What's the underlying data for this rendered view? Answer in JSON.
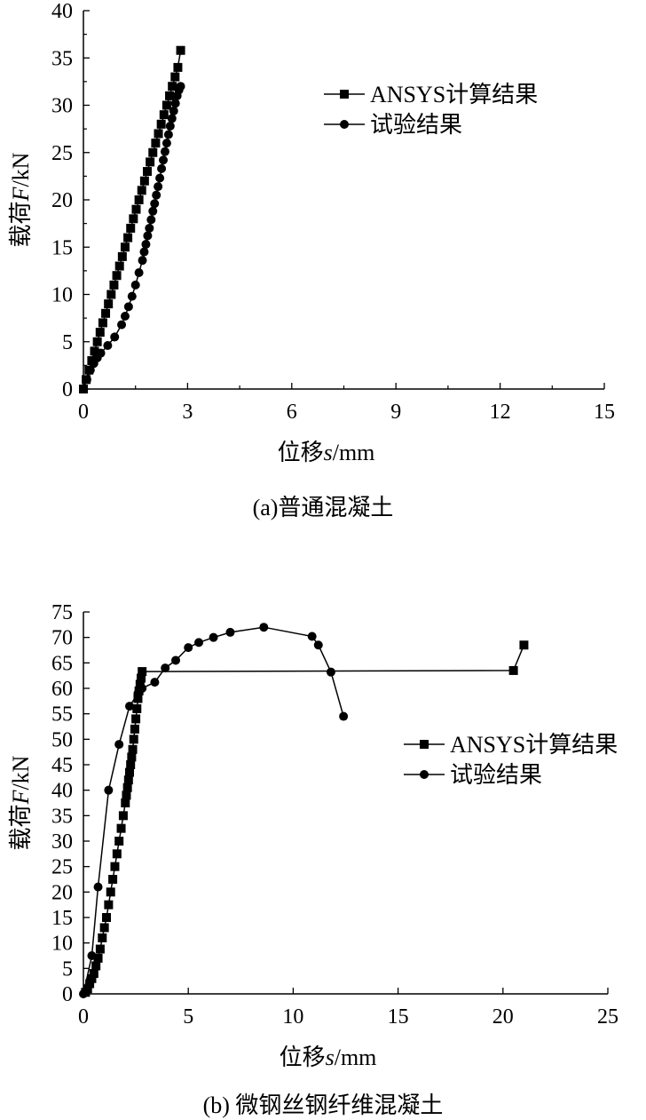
{
  "figure": {
    "panels": [
      {
        "caption": "(a)普通混凝土",
        "legend": [
          "ANSYS计算结果",
          "试验结果"
        ],
        "xlabel": {
          "pre": "位移",
          "var": "s",
          "post": "/mm"
        },
        "ylabel": {
          "pre": "载荷",
          "var": "F",
          "post": "/kN"
        }
      },
      {
        "caption": "(b) 微钢丝钢纤维混凝土",
        "legend": [
          "ANSYS计算结果",
          "试验结果"
        ],
        "xlabel": {
          "pre": "位移",
          "var": "s",
          "post": "/mm"
        },
        "ylabel": {
          "pre": "载荷",
          "var": "F",
          "post": "/kN"
        }
      }
    ]
  },
  "chart_data": [
    {
      "type": "line",
      "title": "(a)普通混凝土",
      "xlabel": "位移s/mm",
      "ylabel": "载荷F/kN",
      "xlim": [
        0,
        15
      ],
      "ylim": [
        0,
        40
      ],
      "xticks": [
        0,
        3,
        6,
        9,
        12,
        15
      ],
      "yticks": [
        0,
        5,
        10,
        15,
        20,
        25,
        30,
        35,
        40
      ],
      "legend_position": "top-right",
      "grid": false,
      "series": [
        {
          "name": "ANSYS计算结果",
          "marker": "square",
          "x": [
            0.0,
            0.08,
            0.16,
            0.24,
            0.32,
            0.4,
            0.48,
            0.56,
            0.64,
            0.72,
            0.8,
            0.88,
            0.96,
            1.04,
            1.12,
            1.2,
            1.28,
            1.36,
            1.44,
            1.52,
            1.6,
            1.68,
            1.76,
            1.84,
            1.92,
            2.0,
            2.08,
            2.16,
            2.24,
            2.32,
            2.4,
            2.48,
            2.56,
            2.64,
            2.72,
            2.8
          ],
          "y": [
            0.0,
            1.0,
            2.0,
            3.0,
            4.0,
            5.0,
            6.0,
            7.0,
            8.0,
            9.0,
            10.0,
            11.0,
            12.0,
            13.0,
            14.0,
            15.0,
            16.0,
            17.0,
            18.0,
            19.0,
            20.0,
            21.0,
            22.0,
            23.0,
            24.0,
            25.0,
            26.0,
            27.0,
            28.0,
            29.0,
            30.0,
            31.0,
            32.0,
            33.0,
            34.0,
            35.8
          ]
        },
        {
          "name": "试验结果",
          "marker": "circle",
          "x": [
            0.0,
            0.1,
            0.2,
            0.3,
            0.4,
            0.5,
            0.7,
            0.9,
            1.1,
            1.2,
            1.3,
            1.4,
            1.5,
            1.6,
            1.7,
            1.75,
            1.8,
            1.85,
            1.9,
            1.95,
            2.0,
            2.05,
            2.1,
            2.15,
            2.2,
            2.25,
            2.3,
            2.35,
            2.4,
            2.45,
            2.5,
            2.55,
            2.6,
            2.65,
            2.7,
            2.75,
            2.8
          ],
          "y": [
            0.0,
            1.0,
            2.0,
            2.7,
            3.3,
            3.8,
            4.6,
            5.5,
            6.8,
            7.7,
            8.7,
            9.8,
            11.0,
            12.3,
            13.6,
            14.5,
            15.3,
            16.2,
            17.0,
            17.9,
            18.8,
            19.6,
            20.5,
            21.4,
            22.3,
            23.3,
            24.2,
            25.1,
            26.0,
            26.9,
            27.8,
            28.6,
            29.4,
            30.2,
            31.0,
            31.6,
            32.0
          ]
        }
      ]
    },
    {
      "type": "line",
      "title": "(b) 微钢丝钢纤维混凝土",
      "xlabel": "位移s/mm",
      "ylabel": "载荷F/kN",
      "xlim": [
        0,
        25
      ],
      "ylim": [
        0,
        75
      ],
      "xticks": [
        0,
        5,
        10,
        15,
        20,
        25
      ],
      "yticks": [
        0,
        5,
        10,
        15,
        20,
        25,
        30,
        35,
        40,
        45,
        50,
        55,
        60,
        65,
        70,
        75
      ],
      "legend_position": "right",
      "grid": false,
      "series": [
        {
          "name": "ANSYS计算结果",
          "marker": "square",
          "x": [
            0.1,
            0.2,
            0.3,
            0.4,
            0.5,
            0.6,
            0.7,
            0.8,
            0.9,
            1.0,
            1.1,
            1.2,
            1.3,
            1.4,
            1.5,
            1.6,
            1.7,
            1.8,
            1.9,
            2.0,
            2.05,
            2.1,
            2.15,
            2.2,
            2.25,
            2.3,
            2.35,
            2.4,
            2.45,
            2.5,
            2.55,
            2.6,
            2.65,
            2.7,
            2.75,
            2.8,
            20.5,
            21.0
          ],
          "y": [
            0.3,
            1.0,
            2.0,
            3.0,
            4.0,
            5.5,
            7.0,
            8.8,
            11.0,
            13.0,
            15.0,
            17.5,
            20.0,
            22.5,
            25.0,
            27.5,
            30.0,
            32.5,
            35.0,
            37.5,
            39.0,
            40.5,
            42.0,
            43.5,
            45.0,
            46.5,
            48.0,
            50.0,
            52.0,
            54.0,
            56.0,
            58.0,
            59.5,
            60.8,
            62.0,
            63.3,
            63.5,
            68.5
          ]
        },
        {
          "name": "试验结果",
          "marker": "circle",
          "x": [
            0.0,
            0.4,
            0.7,
            1.2,
            1.7,
            2.2,
            2.6,
            2.8,
            3.4,
            3.9,
            4.4,
            5.0,
            5.5,
            6.2,
            7.0,
            8.6,
            10.9,
            11.2,
            11.8,
            12.4
          ],
          "y": [
            0.0,
            7.5,
            21.0,
            40.0,
            49.0,
            56.5,
            59.0,
            60.0,
            61.2,
            64.0,
            65.5,
            68.0,
            69.0,
            70.0,
            71.0,
            72.0,
            70.2,
            68.5,
            63.2,
            54.5
          ]
        }
      ]
    }
  ]
}
